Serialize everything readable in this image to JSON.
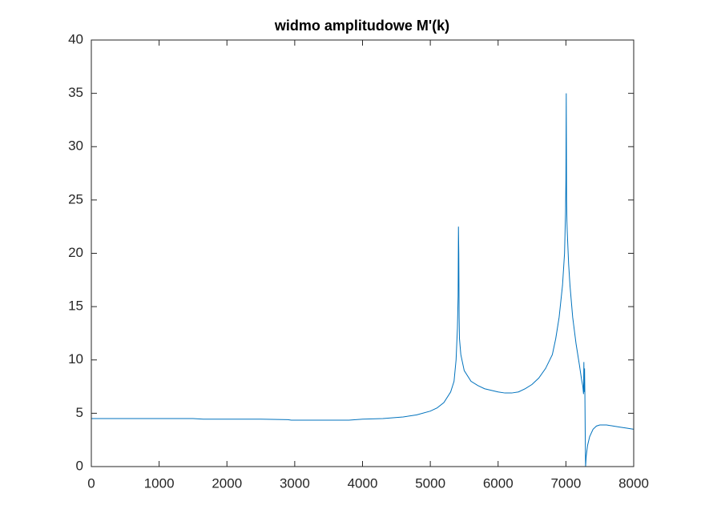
{
  "chart_data": {
    "type": "line",
    "title": "widmo amplitudowe M'(k)",
    "x": [
      0,
      500,
      1000,
      1500,
      1650,
      1700,
      2000,
      2500,
      2900,
      2950,
      3000,
      3500,
      3800,
      4000,
      4300,
      4600,
      4800,
      5000,
      5100,
      5200,
      5300,
      5350,
      5380,
      5400,
      5410,
      5415,
      5420,
      5425,
      5430,
      5450,
      5500,
      5600,
      5700,
      5800,
      6000,
      6100,
      6200,
      6300,
      6400,
      6500,
      6600,
      6700,
      6800,
      6850,
      6900,
      6950,
      6980,
      6995,
      7000,
      7005,
      7010,
      7015,
      7020,
      7040,
      7060,
      7100,
      7150,
      7200,
      7230,
      7250,
      7260,
      7265,
      7270,
      7275,
      7280,
      7285,
      7290,
      7300,
      7320,
      7350,
      7400,
      7450,
      7500,
      7600,
      7700,
      7800,
      7900,
      8000
    ],
    "values": [
      4.5,
      4.5,
      4.5,
      4.5,
      4.45,
      4.45,
      4.45,
      4.45,
      4.4,
      4.35,
      4.35,
      4.35,
      4.35,
      4.45,
      4.5,
      4.65,
      4.85,
      5.2,
      5.5,
      6.0,
      7.0,
      8.0,
      10.0,
      13.0,
      16.0,
      22.5,
      20.0,
      14.0,
      12.0,
      10.5,
      9.0,
      8.0,
      7.6,
      7.3,
      7.0,
      6.9,
      6.9,
      7.0,
      7.3,
      7.7,
      8.3,
      9.2,
      10.5,
      12.0,
      14.0,
      17.0,
      20.0,
      24.0,
      27.0,
      35.0,
      25.0,
      23.0,
      22.0,
      19.0,
      17.0,
      14.0,
      11.5,
      9.5,
      8.2,
      7.5,
      6.8,
      9.8,
      7.0,
      9.2,
      6.8,
      3.0,
      0.0,
      1.0,
      2.0,
      2.8,
      3.5,
      3.8,
      3.9,
      3.9,
      3.8,
      3.7,
      3.6,
      3.5
    ],
    "color": "#0072bd",
    "xlim": [
      0,
      8000
    ],
    "xticks": [
      0,
      1000,
      2000,
      3000,
      4000,
      5000,
      6000,
      7000,
      8000
    ],
    "ylim": [
      0,
      40
    ],
    "yticks": [
      0,
      5,
      10,
      15,
      20,
      25,
      30,
      35,
      40
    ],
    "grid": false
  }
}
